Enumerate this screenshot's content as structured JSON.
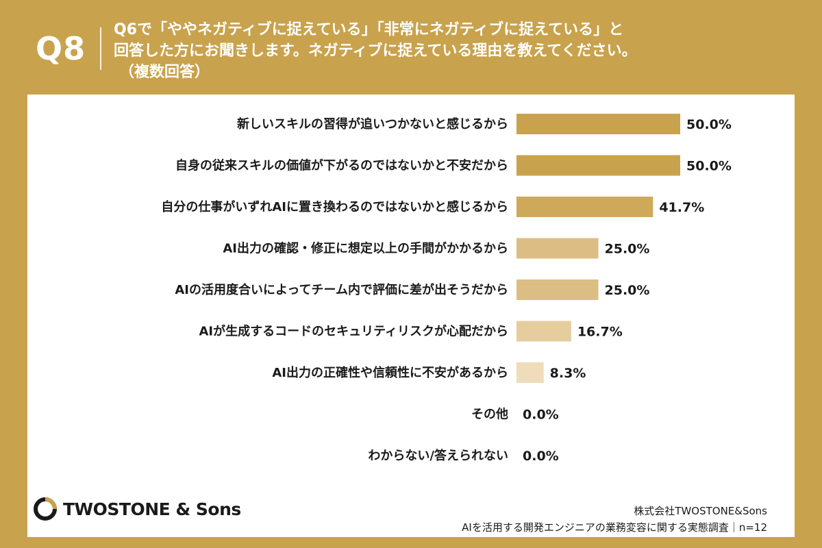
{
  "header": {
    "question_number": "Q8",
    "question_line1": "Q6で「ややネガティブに捉えている」「非常にネガティブに捉えている」と",
    "question_line2": "回答した方にお聞きします。ネガティブに捉えている理由を教えてください。",
    "question_line3": "（複数回答）"
  },
  "chart_data": {
    "type": "bar",
    "orientation": "horizontal",
    "categories": [
      "新しいスキルの習得が追いつかないと感じるから",
      "自身の従来スキルの価値が下がるのではないかと不安だから",
      "自分の仕事がいずれAIに置き換わるのではないかと感じるから",
      "AI出力の確認・修正に想定以上の手間がかかるから",
      "AIの活用度合いによってチーム内で評価に差が出そうだから",
      "AIが生成するコードのセキュリティリスクが心配だから",
      "AI出力の正確性や信頼性に不安があるから",
      "その他",
      "わからない/答えられない"
    ],
    "values": [
      50.0,
      50.0,
      41.7,
      25.0,
      25.0,
      16.7,
      8.3,
      0.0,
      0.0
    ],
    "value_labels": [
      "50.0%",
      "50.0%",
      "41.7%",
      "25.0%",
      "25.0%",
      "16.7%",
      "8.3%",
      "0.0%",
      "0.0%"
    ],
    "xlim": [
      0,
      100
    ],
    "colors": [
      "#c9a24d",
      "#c9a24d",
      "#cfa95a",
      "#dcbe84",
      "#dcbe84",
      "#e6cd9e",
      "#eedcbb",
      "#eedcbb",
      "#eedcbb"
    ]
  },
  "footer": {
    "logo_text": "TWOSTONE & Sons",
    "source_line1": "株式会社TWOSTONE&Sons",
    "source_line2": "AIを活用する開発エンジニアの業務変容に関する実態調査｜n=12"
  },
  "colors": {
    "background": "#c9a24d",
    "panel": "#ffffff",
    "text": "#1a1a1a"
  }
}
